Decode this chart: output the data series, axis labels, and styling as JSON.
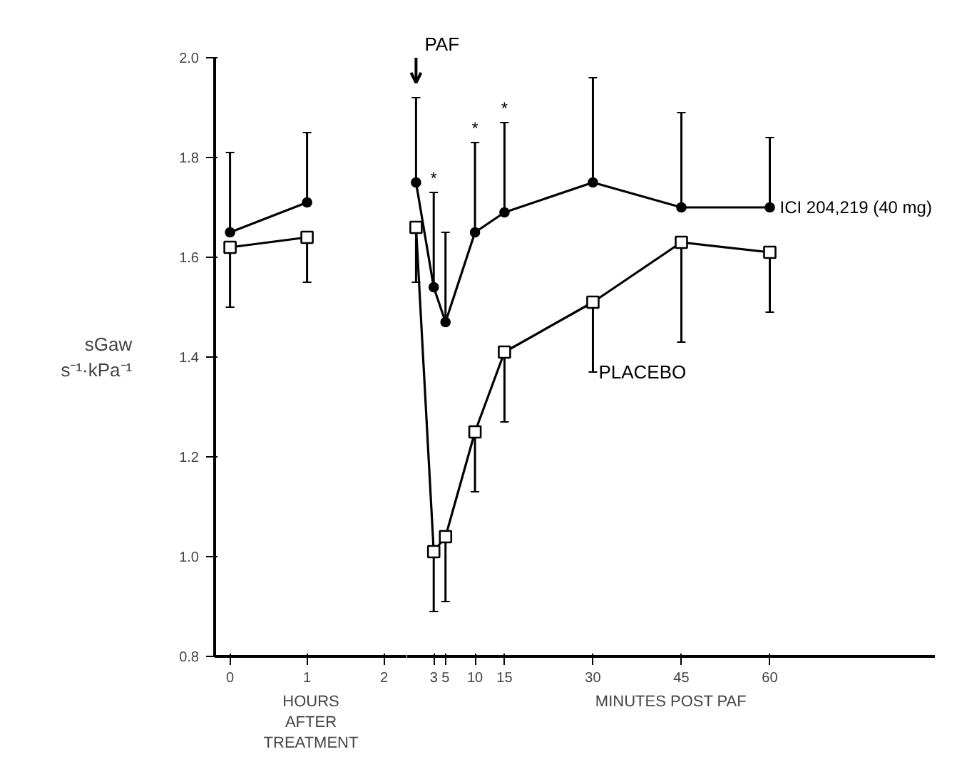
{
  "chart_data": [
    {
      "type": "line",
      "ylabel": "sGaw s⁻¹·kPa⁻¹",
      "xlabel": "HOURS AFTER TREATMENT",
      "xlim": [
        -0.2,
        2.3
      ],
      "xticks": [
        0,
        1,
        2
      ],
      "ylim": [
        0.8,
        2.0
      ],
      "yticks": [
        {
          "value": 0.8,
          "label": "0.8"
        },
        {
          "value": 1,
          "label": "1.0"
        },
        {
          "value": 1.2,
          "label": "1.2"
        },
        {
          "value": 1.4,
          "label": "1.4"
        },
        {
          "value": 1.6,
          "label": "1.6"
        },
        {
          "value": 1.8,
          "label": "1.8"
        },
        {
          "value": 2,
          "label": "2.0"
        }
      ],
      "grid": false,
      "legend": false,
      "line_style": "solid",
      "series": [
        {
          "color": "#000000",
          "marker": "circle",
          "x": [
            0,
            1
          ],
          "values": [
            1.65,
            1.71
          ],
          "errors": [
            [
              1.65,
              1.81
            ],
            [
              1.71,
              1.85
            ]
          ]
        },
        {
          "color": "#000000",
          "marker": "square",
          "x": [
            0,
            1
          ],
          "values": [
            1.62,
            1.64
          ],
          "errors": [
            [
              1.5,
              1.62
            ],
            [
              1.55,
              1.64
            ]
          ]
        }
      ]
    },
    {
      "type": "line",
      "xlabel": "MINUTES POST PAF",
      "xlim": [
        -1.5,
        88
      ],
      "xticks": [
        3,
        5,
        10,
        15,
        30,
        45,
        60
      ],
      "ylim": [
        0.8,
        2.0
      ],
      "tick_labels": "x",
      "grid": false,
      "legend": false,
      "line_style": "solid",
      "ref_lines": [
        {
          "axis": "x",
          "value": 0,
          "label": "PAF"
        }
      ],
      "annotations": [
        {
          "text": "*",
          "x": 3,
          "y": 1.73
        },
        {
          "text": "*",
          "x": 10,
          "y": 1.83
        },
        {
          "text": "*",
          "x": 15,
          "y": 1.87
        }
      ],
      "series": [
        {
          "name": "ICI 204,219  (40 mg)",
          "color": "#000000",
          "marker": "circle",
          "x": [
            0,
            3,
            5,
            10,
            15,
            30,
            45,
            60
          ],
          "values": [
            1.75,
            1.54,
            1.47,
            1.65,
            1.69,
            1.75,
            1.7,
            1.7
          ],
          "errors": [
            [
              1.75,
              1.92
            ],
            [
              1.54,
              1.73
            ],
            [
              1.47,
              1.65
            ],
            [
              1.65,
              1.83
            ],
            [
              1.69,
              1.87
            ],
            [
              1.75,
              1.96
            ],
            [
              1.7,
              1.89
            ],
            [
              1.7,
              1.84
            ]
          ]
        },
        {
          "name": "PLACEBO",
          "color": "#000000",
          "marker": "square",
          "x": [
            0,
            3,
            5,
            10,
            15,
            30,
            45,
            60
          ],
          "values": [
            1.66,
            1.01,
            1.04,
            1.25,
            1.41,
            1.51,
            1.63,
            1.61
          ],
          "errors": [
            [
              1.55,
              1.66
            ],
            [
              0.89,
              1.01
            ],
            [
              0.91,
              1.04
            ],
            [
              1.13,
              1.25
            ],
            [
              1.27,
              1.41
            ],
            [
              1.37,
              1.51
            ],
            [
              1.43,
              1.63
            ],
            [
              1.49,
              1.61
            ]
          ]
        }
      ]
    }
  ]
}
